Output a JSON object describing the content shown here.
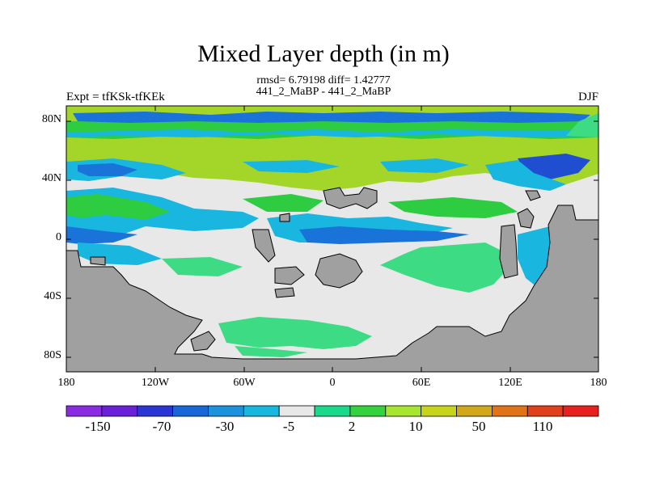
{
  "title": "Mixed Layer depth (in m)",
  "subtitle_stats": "rmsd= 6.79198  diff= 1.42777",
  "subtitle_runs": "441_2_MaBP - 441_2_MaBP",
  "left_label": "Expt = tfKSk-tfKEk",
  "right_label": "DJF",
  "lat_labels": [
    "80N",
    "40N",
    "0",
    "40S",
    "80S"
  ],
  "lon_labels": [
    "180",
    "120W",
    "60W",
    "0",
    "60E",
    "120E",
    "180"
  ],
  "colorbar": {
    "labels": [
      "-150",
      "-70",
      "-30",
      "-5",
      "2",
      "10",
      "50",
      "110"
    ],
    "colors": [
      "#8a2be2",
      "#6a1fd8",
      "#2a35d6",
      "#1966d8",
      "#1a93dc",
      "#17b8e0",
      "#e8e8e8",
      "#1ad98a",
      "#34d23c",
      "#a6e62e",
      "#c8d41c",
      "#d2a81a",
      "#e07218",
      "#e2401a",
      "#e8201e"
    ]
  },
  "map_colors": {
    "land": "#a0a0a0",
    "neutral": "#e8e8e8",
    "green_light": "#3ddc84",
    "green": "#2ecc40",
    "yellow_green": "#a4d62a",
    "cyan": "#19b6e0",
    "blue": "#1a73d9",
    "dark_blue": "#1f4fd0"
  }
}
